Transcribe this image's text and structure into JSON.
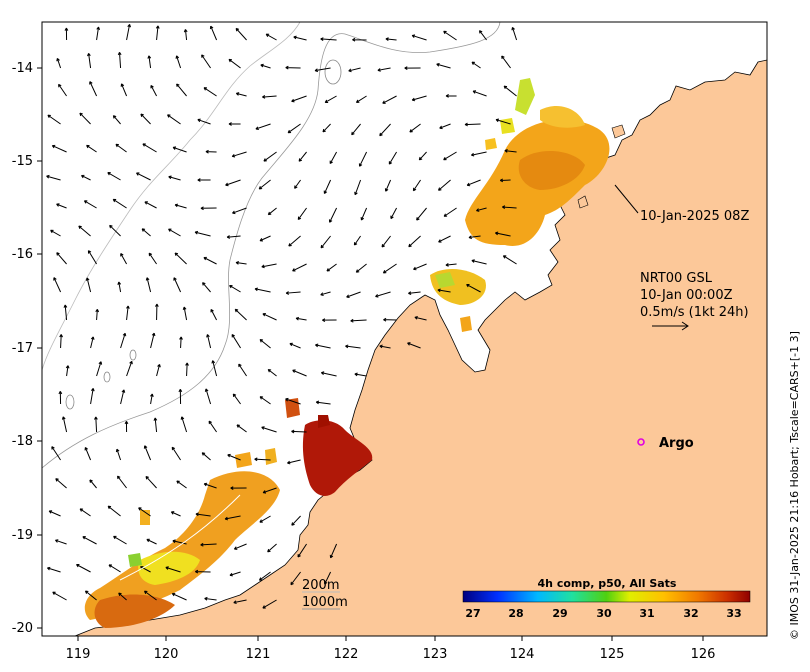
{
  "map": {
    "lon_ticks": [
      "119",
      "120",
      "121",
      "122",
      "123",
      "124",
      "125",
      "126"
    ],
    "lat_ticks": [
      "-14",
      "-15",
      "-16",
      "-17",
      "-18",
      "-19",
      "-20"
    ],
    "lon_range": [
      118.65,
      126.7
    ],
    "lat_range": [
      -20.1,
      -13.5
    ]
  },
  "annotations": {
    "pass_time": "10-Jan-2025 08Z",
    "current_line1": "NRT00 GSL",
    "current_line2": "10-Jan 00:00Z",
    "current_line3": "0.5m/s (1kt 24h)",
    "argo_label": "Argo",
    "iso_200": "200m",
    "iso_1000": "1000m"
  },
  "colorbar": {
    "title": "4h comp, p50, All Sats",
    "ticks": [
      "27",
      "28",
      "29",
      "30",
      "31",
      "32",
      "33"
    ]
  },
  "credit": "© IMOS 31-Jan-2025 21:16 Hobart; Tscale=CARS+[-1 3]",
  "colors": {
    "land": "#fcc899",
    "argo": "#e000e0"
  }
}
